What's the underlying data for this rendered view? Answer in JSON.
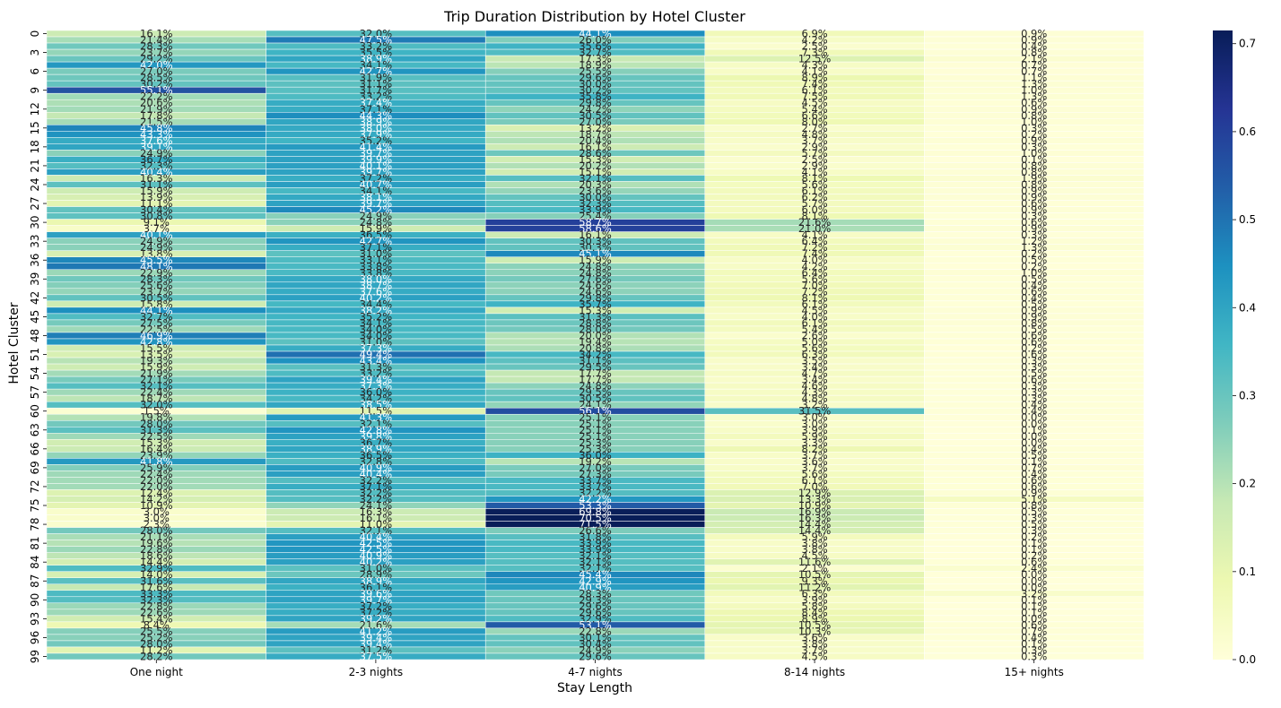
{
  "chart_data": {
    "type": "heatmap",
    "title": "Trip Duration Distribution by Hotel Cluster",
    "xlabel": "Stay Length",
    "ylabel": "Hotel Cluster",
    "x_categories": [
      "One night",
      "2-3 nights",
      "4-7 nights",
      "8-14 nights",
      "15+ nights"
    ],
    "y_tick_labels": [
      "0",
      "3",
      "6",
      "9",
      "12",
      "15",
      "18",
      "21",
      "24",
      "27",
      "30",
      "33",
      "36",
      "39",
      "42",
      "45",
      "48",
      "51",
      "54",
      "57",
      "60",
      "63",
      "66",
      "69",
      "72",
      "75",
      "78",
      "81",
      "84",
      "87",
      "90",
      "93",
      "96",
      "99"
    ],
    "y_tick_rows": [
      0,
      3,
      6,
      9,
      12,
      15,
      18,
      21,
      24,
      27,
      30,
      33,
      36,
      39,
      42,
      45,
      48,
      51,
      54,
      57,
      60,
      63,
      66,
      69,
      72,
      75,
      78,
      81,
      84,
      87,
      90,
      93,
      96,
      99
    ],
    "rows": 100,
    "value_range": [
      0,
      0.7
    ],
    "colorbar_ticks": [
      "0.0",
      "0.1",
      "0.2",
      "0.3",
      "0.4",
      "0.5",
      "0.6",
      "0.7"
    ],
    "colormap": "YlGnBu",
    "colors": [
      "#ffffd9",
      "#edf8b1",
      "#c7e9b4",
      "#7fcdbb",
      "#41b6c4",
      "#1d91c0",
      "#225ea8",
      "#253494",
      "#081d58"
    ],
    "cell_values": [
      [
        0.161,
        0.32,
        0.441,
        0.069,
        0.009
      ],
      [
        0.214,
        0.475,
        0.26,
        0.042,
        0.009
      ],
      [
        0.283,
        0.332,
        0.356,
        0.025,
        0.004
      ],
      [
        0.237,
        0.355,
        0.327,
        0.073,
        0.008
      ],
      [
        0.292,
        0.389,
        0.173,
        0.125,
        0.021
      ],
      [
        0.42,
        0.341,
        0.189,
        0.043,
        0.007
      ],
      [
        0.27,
        0.427,
        0.255,
        0.041,
        0.007
      ],
      [
        0.285,
        0.319,
        0.296,
        0.089,
        0.011
      ],
      [
        0.302,
        0.311,
        0.3,
        0.074,
        0.013
      ],
      [
        0.551,
        0.317,
        0.302,
        0.061,
        0.01
      ],
      [
        0.222,
        0.332,
        0.358,
        0.075,
        0.013
      ],
      [
        0.206,
        0.374,
        0.298,
        0.045,
        0.006
      ],
      [
        0.219,
        0.371,
        0.242,
        0.054,
        0.009
      ],
      [
        0.178,
        0.443,
        0.305,
        0.066,
        0.008
      ],
      [
        0.215,
        0.389,
        0.27,
        0.08,
        0.01
      ],
      [
        0.458,
        0.38,
        0.132,
        0.027,
        0.003
      ],
      [
        0.433,
        0.379,
        0.187,
        0.048,
        0.002
      ],
      [
        0.376,
        0.352,
        0.204,
        0.037,
        0.009
      ],
      [
        0.391,
        0.414,
        0.161,
        0.029,
        0.003
      ],
      [
        0.249,
        0.397,
        0.286,
        0.057,
        0.01
      ],
      [
        0.367,
        0.399,
        0.153,
        0.025,
        0.001
      ],
      [
        0.323,
        0.401,
        0.202,
        0.029,
        0.008
      ],
      [
        0.404,
        0.397,
        0.151,
        0.041,
        0.008
      ],
      [
        0.163,
        0.372,
        0.321,
        0.081,
        0.019
      ],
      [
        0.311,
        0.407,
        0.203,
        0.056,
        0.008
      ],
      [
        0.159,
        0.341,
        0.236,
        0.061,
        0.009
      ],
      [
        0.139,
        0.381,
        0.3,
        0.062,
        0.009
      ],
      [
        0.111,
        0.397,
        0.323,
        0.057,
        0.006
      ],
      [
        0.304,
        0.452,
        0.339,
        0.06,
        0.009
      ],
      [
        0.308,
        0.249,
        0.254,
        0.081,
        0.003
      ],
      [
        0.091,
        0.248,
        0.587,
        0.216,
        0.006
      ],
      [
        0.037,
        0.159,
        0.586,
        0.21,
        0.009
      ],
      [
        0.401,
        0.365,
        0.161,
        0.041,
        0.003
      ],
      [
        0.249,
        0.427,
        0.303,
        0.064,
        0.012
      ],
      [
        0.249,
        0.371,
        0.303,
        0.072,
        0.013
      ],
      [
        0.138,
        0.31,
        0.451,
        0.074,
        0.002
      ],
      [
        0.455,
        0.331,
        0.159,
        0.04,
        0.005
      ],
      [
        0.481,
        0.338,
        0.248,
        0.042,
        0.002
      ],
      [
        0.229,
        0.338,
        0.248,
        0.064,
        0.01
      ],
      [
        0.283,
        0.38,
        0.276,
        0.056,
        0.005
      ],
      [
        0.256,
        0.387,
        0.246,
        0.07,
        0.004
      ],
      [
        0.237,
        0.376,
        0.246,
        0.072,
        0.006
      ],
      [
        0.305,
        0.402,
        0.298,
        0.081,
        0.004
      ],
      [
        0.158,
        0.344,
        0.357,
        0.061,
        0.005
      ],
      [
        0.441,
        0.382,
        0.153,
        0.045,
        0.009
      ],
      [
        0.327,
        0.352,
        0.313,
        0.04,
        0.009
      ],
      [
        0.275,
        0.341,
        0.288,
        0.061,
        0.008
      ],
      [
        0.225,
        0.34,
        0.28,
        0.054,
        0.005
      ],
      [
        0.469,
        0.34,
        0.2,
        0.026,
        0.006
      ],
      [
        0.428,
        0.31,
        0.194,
        0.05,
        0.006
      ],
      [
        0.155,
        0.373,
        0.208,
        0.056,
        0.002
      ],
      [
        0.135,
        0.494,
        0.342,
        0.063,
        0.006
      ],
      [
        0.193,
        0.434,
        0.311,
        0.035,
        0.003
      ],
      [
        0.159,
        0.313,
        0.295,
        0.034,
        0.003
      ],
      [
        0.219,
        0.332,
        0.177,
        0.047,
        0.005
      ],
      [
        0.271,
        0.394,
        0.177,
        0.034,
        0.006
      ],
      [
        0.321,
        0.373,
        0.248,
        0.046,
        0.003
      ],
      [
        0.224,
        0.36,
        0.295,
        0.043,
        0.003
      ],
      [
        0.187,
        0.342,
        0.305,
        0.048,
        0.003
      ],
      [
        0.32,
        0.385,
        0.241,
        0.032,
        0.004
      ],
      [
        0.015,
        0.115,
        0.561,
        0.315,
        0.004
      ],
      [
        0.198,
        0.413,
        0.251,
        0.03,
        0.0
      ],
      [
        0.28,
        0.321,
        0.251,
        0.03,
        0.0
      ],
      [
        0.313,
        0.428,
        0.251,
        0.039,
        0.001
      ],
      [
        0.225,
        0.398,
        0.251,
        0.059,
        0.0
      ],
      [
        0.153,
        0.367,
        0.253,
        0.033,
        0.0
      ],
      [
        0.164,
        0.389,
        0.253,
        0.082,
        0.004
      ],
      [
        0.239,
        0.365,
        0.36,
        0.037,
        0.005
      ],
      [
        0.418,
        0.328,
        0.192,
        0.036,
        0.001
      ],
      [
        0.259,
        0.409,
        0.27,
        0.037,
        0.007
      ],
      [
        0.224,
        0.404,
        0.273,
        0.056,
        0.004
      ],
      [
        0.22,
        0.322,
        0.337,
        0.061,
        0.006
      ],
      [
        0.22,
        0.371,
        0.337,
        0.07,
        0.006
      ],
      [
        0.124,
        0.322,
        0.322,
        0.129,
        0.009
      ],
      [
        0.142,
        0.322,
        0.422,
        0.133,
        0.051
      ],
      [
        0.109,
        0.241,
        0.533,
        0.109,
        0.008
      ],
      [
        0.03,
        0.163,
        0.698,
        0.169,
        0.005
      ],
      [
        0.03,
        0.161,
        0.705,
        0.163,
        0.003
      ],
      [
        0.023,
        0.11,
        0.715,
        0.144,
        0.005
      ],
      [
        0.28,
        0.321,
        0.266,
        0.144,
        0.003
      ],
      [
        0.211,
        0.404,
        0.318,
        0.059,
        0.002
      ],
      [
        0.196,
        0.425,
        0.339,
        0.038,
        0.001
      ],
      [
        0.228,
        0.425,
        0.339,
        0.038,
        0.001
      ],
      [
        0.186,
        0.409,
        0.321,
        0.045,
        0.002
      ],
      [
        0.144,
        0.402,
        0.321,
        0.116,
        0.006
      ],
      [
        0.329,
        0.31,
        0.321,
        0.021,
        0.024
      ],
      [
        0.14,
        0.289,
        0.454,
        0.105,
        0.0
      ],
      [
        0.316,
        0.389,
        0.429,
        0.093,
        0.0
      ],
      [
        0.176,
        0.361,
        0.409,
        0.112,
        0.0
      ],
      [
        0.333,
        0.396,
        0.283,
        0.063,
        0.032
      ],
      [
        0.323,
        0.397,
        0.293,
        0.039,
        0.001
      ],
      [
        0.228,
        0.372,
        0.296,
        0.058,
        0.001
      ],
      [
        0.226,
        0.372,
        0.296,
        0.084,
        0.001
      ],
      [
        0.154,
        0.392,
        0.329,
        0.089,
        0.0
      ],
      [
        0.084,
        0.216,
        0.531,
        0.105,
        0.006
      ],
      [
        0.255,
        0.412,
        0.228,
        0.103,
        0.007
      ],
      [
        0.252,
        0.394,
        0.301,
        0.036,
        0.004
      ],
      [
        0.28,
        0.394,
        0.304,
        0.038,
        0.001
      ],
      [
        0.112,
        0.312,
        0.249,
        0.037,
        0.003
      ],
      [
        0.282,
        0.375,
        0.296,
        0.045,
        0.003
      ]
    ]
  }
}
